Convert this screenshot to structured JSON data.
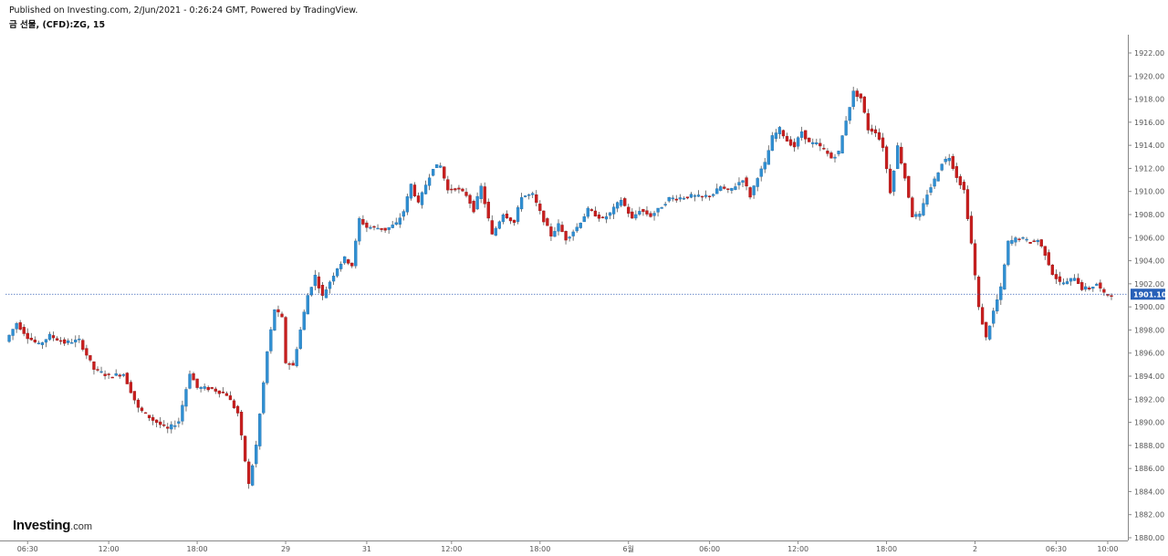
{
  "header": {
    "published": "Published on Investing.com, 2/Jun/2021 - 0:26:24 GMT, Powered by TradingView.",
    "symbol": "금 선물, (CFD):ZG, 15"
  },
  "logo": {
    "main": "Investing",
    "suffix": ".com"
  },
  "colors": {
    "up": "#2f8fd2",
    "down": "#c81e1e",
    "wick": "#555555",
    "axis": "#888888",
    "priceLine": "#3a64b8",
    "priceBadge": "#2860b8"
  },
  "chart_data": {
    "type": "candlestick",
    "y_axis_ticks": [
      "1880.00",
      "1882.00",
      "1884.00",
      "1886.00",
      "1888.00",
      "1890.00",
      "1892.00",
      "1894.00",
      "1896.00",
      "1898.00",
      "1900.00",
      "1902.00",
      "1904.00",
      "1906.00",
      "1908.00",
      "1910.00",
      "1912.00",
      "1914.00",
      "1916.00",
      "1918.00",
      "1920.00",
      "1922.00"
    ],
    "ylim": [
      1880,
      1923
    ],
    "x_axis_ticks": [
      {
        "label": "06:30",
        "idx": 6
      },
      {
        "label": "12:00",
        "idx": 28
      },
      {
        "label": "18:00",
        "idx": 52
      },
      {
        "label": "29",
        "idx": 76
      },
      {
        "label": "31",
        "idx": 98
      },
      {
        "label": "12:00",
        "idx": 121
      },
      {
        "label": "18:00",
        "idx": 145
      },
      {
        "label": "6월",
        "idx": 169
      },
      {
        "label": "06:00",
        "idx": 191
      },
      {
        "label": "12:00",
        "idx": 215
      },
      {
        "label": "18:00",
        "idx": 239
      },
      {
        "label": "2",
        "idx": 263
      },
      {
        "label": "06:30",
        "idx": 285
      },
      {
        "label": "10:00",
        "idx": 299
      }
    ],
    "last_price": {
      "label": "1901.10",
      "value": 1901.1
    },
    "series": [
      {
        "name": "(CFD):ZG",
        "anchors": [
          [
            0,
            1897.0
          ],
          [
            3,
            1898.6
          ],
          [
            6,
            1897.4
          ],
          [
            9,
            1896.7
          ],
          [
            12,
            1897.5
          ],
          [
            16,
            1896.9
          ],
          [
            20,
            1897.1
          ],
          [
            24,
            1894.6
          ],
          [
            28,
            1894.0
          ],
          [
            32,
            1894.2
          ],
          [
            36,
            1891.2
          ],
          [
            40,
            1890.2
          ],
          [
            44,
            1889.4
          ],
          [
            47,
            1890.1
          ],
          [
            50,
            1894.3
          ],
          [
            52,
            1893.0
          ],
          [
            56,
            1892.9
          ],
          [
            60,
            1892.4
          ],
          [
            63,
            1890.8
          ],
          [
            66,
            1884.6
          ],
          [
            68,
            1888.0
          ],
          [
            71,
            1896.1
          ],
          [
            73,
            1899.8
          ],
          [
            75,
            1899.0
          ],
          [
            76,
            1895.2
          ],
          [
            78,
            1894.9
          ],
          [
            80,
            1898.0
          ],
          [
            82,
            1901.0
          ],
          [
            84,
            1902.7
          ],
          [
            86,
            1900.9
          ],
          [
            88,
            1902.2
          ],
          [
            90,
            1903.4
          ],
          [
            92,
            1904.2
          ],
          [
            94,
            1903.6
          ],
          [
            96,
            1907.6
          ],
          [
            98,
            1906.9
          ],
          [
            100,
            1906.9
          ],
          [
            103,
            1906.7
          ],
          [
            106,
            1907.2
          ],
          [
            108,
            1908.3
          ],
          [
            110,
            1910.6
          ],
          [
            112,
            1908.9
          ],
          [
            114,
            1910.6
          ],
          [
            116,
            1912.1
          ],
          [
            118,
            1912.2
          ],
          [
            120,
            1910.1
          ],
          [
            122,
            1910.3
          ],
          [
            125,
            1909.7
          ],
          [
            127,
            1908.4
          ],
          [
            129,
            1910.4
          ],
          [
            132,
            1906.2
          ],
          [
            135,
            1908.1
          ],
          [
            138,
            1907.3
          ],
          [
            140,
            1909.6
          ],
          [
            143,
            1909.7
          ],
          [
            145,
            1908.2
          ],
          [
            148,
            1906.2
          ],
          [
            150,
            1907.1
          ],
          [
            152,
            1905.9
          ],
          [
            155,
            1906.9
          ],
          [
            158,
            1908.4
          ],
          [
            160,
            1908.0
          ],
          [
            162,
            1907.6
          ],
          [
            164,
            1908.1
          ],
          [
            167,
            1909.3
          ],
          [
            170,
            1907.6
          ],
          [
            172,
            1908.4
          ],
          [
            175,
            1907.9
          ],
          [
            177,
            1908.4
          ],
          [
            180,
            1909.4
          ],
          [
            182,
            1909.4
          ],
          [
            186,
            1909.6
          ],
          [
            189,
            1909.5
          ],
          [
            192,
            1909.8
          ],
          [
            194,
            1910.4
          ],
          [
            196,
            1910.0
          ],
          [
            198,
            1910.5
          ],
          [
            200,
            1911.1
          ],
          [
            202,
            1909.6
          ],
          [
            204,
            1911.3
          ],
          [
            206,
            1912.4
          ],
          [
            208,
            1914.7
          ],
          [
            210,
            1915.4
          ],
          [
            212,
            1914.4
          ],
          [
            214,
            1913.9
          ],
          [
            216,
            1915.2
          ],
          [
            218,
            1914.2
          ],
          [
            220,
            1914.1
          ],
          [
            222,
            1913.6
          ],
          [
            224,
            1912.9
          ],
          [
            226,
            1913.4
          ],
          [
            228,
            1916.2
          ],
          [
            230,
            1918.6
          ],
          [
            232,
            1918.1
          ],
          [
            234,
            1915.4
          ],
          [
            236,
            1915.2
          ],
          [
            238,
            1913.9
          ],
          [
            240,
            1910.0
          ],
          [
            242,
            1913.9
          ],
          [
            244,
            1911.2
          ],
          [
            246,
            1907.9
          ],
          [
            248,
            1907.9
          ],
          [
            250,
            1909.8
          ],
          [
            252,
            1911.0
          ],
          [
            254,
            1912.5
          ],
          [
            256,
            1913.0
          ],
          [
            258,
            1911.3
          ],
          [
            260,
            1910.1
          ],
          [
            262,
            1905.5
          ],
          [
            264,
            1899.9
          ],
          [
            266,
            1897.3
          ],
          [
            268,
            1899.6
          ],
          [
            270,
            1901.6
          ],
          [
            272,
            1905.6
          ],
          [
            275,
            1906.0
          ],
          [
            278,
            1905.6
          ],
          [
            280,
            1905.8
          ],
          [
            282,
            1904.6
          ],
          [
            284,
            1902.9
          ],
          [
            286,
            1902.1
          ],
          [
            288,
            1902.1
          ],
          [
            290,
            1902.6
          ],
          [
            292,
            1901.6
          ],
          [
            294,
            1901.6
          ],
          [
            296,
            1902.0
          ],
          [
            298,
            1901.1
          ],
          [
            300,
            1901.1
          ]
        ]
      }
    ]
  }
}
